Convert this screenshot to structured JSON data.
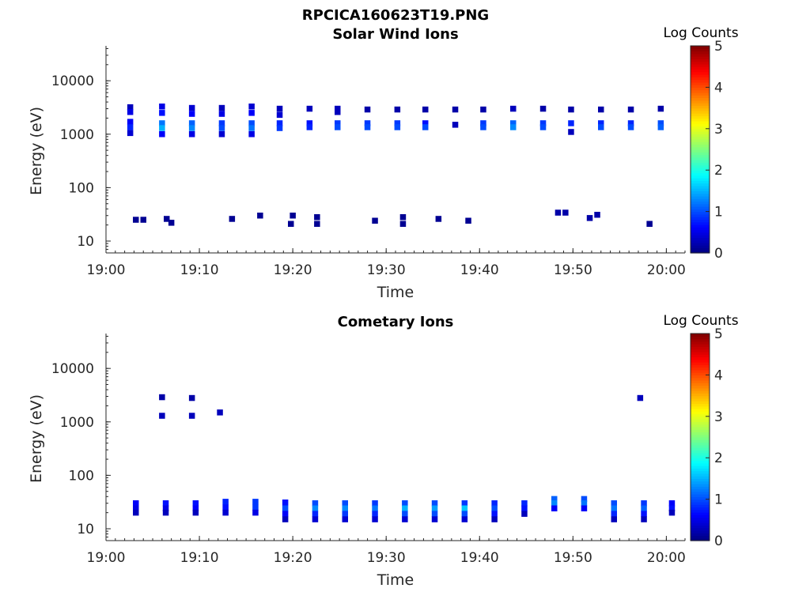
{
  "figure_title": "RPCICA160623T19.PNG",
  "colormap": {
    "name": "jet",
    "stops": [
      "#00007f",
      "#0000ff",
      "#007fff",
      "#00ffff",
      "#7fff7f",
      "#ffff00",
      "#ff7f00",
      "#ff0000",
      "#7f0000"
    ]
  },
  "chart_data": [
    {
      "type": "heatmap",
      "title": "Solar Wind Ions",
      "xlabel": "Time",
      "ylabel": "Energy (eV)",
      "xlim": [
        "19:00",
        "20:02"
      ],
      "ylim": [
        6,
        45000
      ],
      "yscale": "log",
      "xticks": [
        "19:00",
        "19:10",
        "19:20",
        "19:30",
        "19:40",
        "19:50",
        "20:00"
      ],
      "yticks": [
        "10",
        "100",
        "1000",
        "10000"
      ],
      "colorbar": {
        "label": "Log Counts",
        "ticks": [
          "0",
          "1",
          "2",
          "3",
          "4",
          "5"
        ],
        "range": [
          0,
          5
        ]
      },
      "cells": [
        [
          "19:02.6",
          3200,
          0.3
        ],
        [
          "19:02.6",
          2600,
          0.5
        ],
        [
          "19:02.6",
          1700,
          0.6
        ],
        [
          "19:02.6",
          1350,
          0.8
        ],
        [
          "19:02.6",
          1050,
          0.4
        ],
        [
          "19:06.0",
          3300,
          0.5
        ],
        [
          "19:06.0",
          2500,
          0.7
        ],
        [
          "19:06.0",
          1600,
          1.2
        ],
        [
          "19:06.0",
          1300,
          1.5
        ],
        [
          "19:06.0",
          1000,
          0.6
        ],
        [
          "19:09.2",
          3100,
          0.4
        ],
        [
          "19:09.2",
          2400,
          0.6
        ],
        [
          "19:09.2",
          1600,
          1.1
        ],
        [
          "19:09.2",
          1300,
          1.3
        ],
        [
          "19:09.2",
          1000,
          0.5
        ],
        [
          "19:12.4",
          3100,
          0.3
        ],
        [
          "19:12.4",
          2400,
          0.5
        ],
        [
          "19:12.4",
          1600,
          0.9
        ],
        [
          "19:12.4",
          1300,
          1.0
        ],
        [
          "19:12.4",
          1000,
          0.4
        ],
        [
          "19:15.6",
          3300,
          0.4
        ],
        [
          "19:15.6",
          2500,
          0.6
        ],
        [
          "19:15.6",
          1600,
          1.0
        ],
        [
          "19:15.6",
          1300,
          1.2
        ],
        [
          "19:15.6",
          1000,
          0.5
        ],
        [
          "19:18.6",
          3000,
          0.3
        ],
        [
          "19:18.6",
          2300,
          0.4
        ],
        [
          "19:18.6",
          1600,
          0.8
        ],
        [
          "19:18.6",
          1300,
          0.9
        ],
        [
          "19:21.8",
          3000,
          0.3
        ],
        [
          "19:21.8",
          1600,
          0.7
        ],
        [
          "19:21.8",
          1350,
          0.8
        ],
        [
          "19:24.8",
          3000,
          0.3
        ],
        [
          "19:24.8",
          2600,
          0.3
        ],
        [
          "19:24.8",
          1600,
          0.9
        ],
        [
          "19:24.8",
          1350,
          1.0
        ],
        [
          "19:28.0",
          2900,
          0.2
        ],
        [
          "19:28.0",
          1600,
          0.9
        ],
        [
          "19:28.0",
          1350,
          1.0
        ],
        [
          "19:31.2",
          2900,
          0.2
        ],
        [
          "19:31.2",
          1600,
          0.9
        ],
        [
          "19:31.2",
          1350,
          1.0
        ],
        [
          "19:34.2",
          2900,
          0.2
        ],
        [
          "19:34.2",
          1600,
          0.7
        ],
        [
          "19:34.2",
          1350,
          1.0
        ],
        [
          "19:37.4",
          2900,
          0.2
        ],
        [
          "19:37.4",
          1500,
          0.3
        ],
        [
          "19:40.4",
          2900,
          0.2
        ],
        [
          "19:40.4",
          1600,
          0.9
        ],
        [
          "19:40.4",
          1350,
          1.0
        ],
        [
          "19:43.6",
          3000,
          0.3
        ],
        [
          "19:43.6",
          1600,
          1.1
        ],
        [
          "19:43.6",
          1350,
          1.3
        ],
        [
          "19:46.8",
          3000,
          0.2
        ],
        [
          "19:46.8",
          1600,
          0.9
        ],
        [
          "19:46.8",
          1350,
          1.0
        ],
        [
          "19:49.8",
          2900,
          0.2
        ],
        [
          "19:49.8",
          1600,
          0.8
        ],
        [
          "19:49.8",
          1100,
          0.3
        ],
        [
          "19:53.0",
          2900,
          0.2
        ],
        [
          "19:53.0",
          1600,
          0.8
        ],
        [
          "19:53.0",
          1350,
          1.0
        ],
        [
          "19:56.2",
          2900,
          0.2
        ],
        [
          "19:56.2",
          1600,
          0.8
        ],
        [
          "19:56.2",
          1350,
          1.0
        ],
        [
          "19:59.4",
          3000,
          0.2
        ],
        [
          "19:59.4",
          1600,
          1.0
        ],
        [
          "19:59.4",
          1350,
          1.1
        ],
        [
          "19:03.2",
          25,
          0.1
        ],
        [
          "19:04.0",
          25,
          0.1
        ],
        [
          "19:06.5",
          26,
          0.1
        ],
        [
          "19:07.0",
          22,
          0.1
        ],
        [
          "19:13.5",
          26,
          0.1
        ],
        [
          "19:16.5",
          30,
          0.1
        ],
        [
          "19:20.0",
          30,
          0.1
        ],
        [
          "19:19.8",
          21,
          0.1
        ],
        [
          "19:22.6",
          28,
          0.1
        ],
        [
          "19:22.6",
          21,
          0.1
        ],
        [
          "19:28.8",
          24,
          0.1
        ],
        [
          "19:31.8",
          28,
          0.1
        ],
        [
          "19:31.8",
          21,
          0.1
        ],
        [
          "19:35.6",
          26,
          0.1
        ],
        [
          "19:38.8",
          24,
          0.1
        ],
        [
          "19:48.4",
          34,
          0.2
        ],
        [
          "19:49.2",
          34,
          0.2
        ],
        [
          "19:51.8",
          27,
          0.2
        ],
        [
          "19:52.6",
          31,
          0.2
        ],
        [
          "19:58.2",
          21,
          0.1
        ]
      ]
    },
    {
      "type": "heatmap",
      "title": "Cometary Ions",
      "xlabel": "Time",
      "ylabel": "Energy (eV)",
      "xlim": [
        "19:00",
        "20:02"
      ],
      "ylim": [
        6,
        45000
      ],
      "yscale": "log",
      "xticks": [
        "19:00",
        "19:10",
        "19:20",
        "19:30",
        "19:40",
        "19:50",
        "20:00"
      ],
      "yticks": [
        "10",
        "100",
        "1000",
        "10000"
      ],
      "colorbar": {
        "label": "Log Counts",
        "ticks": [
          "0",
          "1",
          "2",
          "3",
          "4",
          "5"
        ],
        "range": [
          0,
          5
        ]
      },
      "cells": [
        [
          "19:06.0",
          2900,
          0.2
        ],
        [
          "19:06.0",
          1300,
          0.3
        ],
        [
          "19:09.2",
          2800,
          0.2
        ],
        [
          "19:09.2",
          1300,
          0.3
        ],
        [
          "19:12.2",
          1500,
          0.3
        ],
        [
          "19:57.2",
          2800,
          0.3
        ],
        [
          "19:03.2",
          30,
          0.6
        ],
        [
          "19:03.2",
          24,
          0.5
        ],
        [
          "19:03.2",
          20,
          0.3
        ],
        [
          "19:06.4",
          30,
          0.7
        ],
        [
          "19:06.4",
          24,
          0.5
        ],
        [
          "19:06.4",
          20,
          0.3
        ],
        [
          "19:09.6",
          30,
          0.7
        ],
        [
          "19:09.6",
          24,
          0.6
        ],
        [
          "19:09.6",
          20,
          0.3
        ],
        [
          "19:12.8",
          32,
          0.8
        ],
        [
          "19:12.8",
          25,
          0.7
        ],
        [
          "19:12.8",
          20,
          0.4
        ],
        [
          "19:16.0",
          32,
          0.9
        ],
        [
          "19:16.0",
          25,
          0.9
        ],
        [
          "19:16.0",
          20,
          0.5
        ],
        [
          "19:19.2",
          31,
          0.7
        ],
        [
          "19:19.2",
          24,
          1.0
        ],
        [
          "19:19.2",
          19,
          0.6
        ],
        [
          "19:19.2",
          15,
          0.3
        ],
        [
          "19:22.4",
          30,
          1.0
        ],
        [
          "19:22.4",
          24,
          1.3
        ],
        [
          "19:22.4",
          19,
          0.8
        ],
        [
          "19:22.4",
          15,
          0.4
        ],
        [
          "19:25.6",
          30,
          1.0
        ],
        [
          "19:25.6",
          24,
          1.3
        ],
        [
          "19:25.6",
          19,
          0.9
        ],
        [
          "19:25.6",
          15,
          0.4
        ],
        [
          "19:28.8",
          30,
          0.9
        ],
        [
          "19:28.8",
          24,
          1.2
        ],
        [
          "19:28.8",
          19,
          0.8
        ],
        [
          "19:28.8",
          15,
          0.4
        ],
        [
          "19:32.0",
          30,
          1.0
        ],
        [
          "19:32.0",
          24,
          1.5
        ],
        [
          "19:32.0",
          19,
          1.0
        ],
        [
          "19:32.0",
          15,
          0.4
        ],
        [
          "19:35.2",
          30,
          1.0
        ],
        [
          "19:35.2",
          24,
          1.4
        ],
        [
          "19:35.2",
          19,
          1.0
        ],
        [
          "19:35.2",
          15,
          0.4
        ],
        [
          "19:38.4",
          30,
          0.9
        ],
        [
          "19:38.4",
          24,
          1.6
        ],
        [
          "19:38.4",
          19,
          1.0
        ],
        [
          "19:38.4",
          15,
          0.4
        ],
        [
          "19:41.6",
          30,
          0.8
        ],
        [
          "19:41.6",
          24,
          1.0
        ],
        [
          "19:41.6",
          19,
          0.7
        ],
        [
          "19:41.6",
          15,
          0.3
        ],
        [
          "19:44.8",
          30,
          0.8
        ],
        [
          "19:44.8",
          24,
          0.7
        ],
        [
          "19:44.8",
          19,
          0.3
        ],
        [
          "19:48.0",
          36,
          1.1
        ],
        [
          "19:48.0",
          30,
          1.3
        ],
        [
          "19:48.0",
          24,
          0.6
        ],
        [
          "19:51.2",
          36,
          1.0
        ],
        [
          "19:51.2",
          30,
          1.2
        ],
        [
          "19:51.2",
          24,
          0.6
        ],
        [
          "19:54.4",
          30,
          1.0
        ],
        [
          "19:54.4",
          24,
          1.2
        ],
        [
          "19:54.4",
          19,
          0.8
        ],
        [
          "19:54.4",
          15,
          0.3
        ],
        [
          "19:57.6",
          30,
          0.9
        ],
        [
          "19:57.6",
          24,
          1.1
        ],
        [
          "19:57.6",
          19,
          0.7
        ],
        [
          "19:57.6",
          15,
          0.3
        ],
        [
          "20:00.6",
          30,
          0.6
        ],
        [
          "20:00.6",
          24,
          0.7
        ],
        [
          "20:00.6",
          20,
          0.3
        ]
      ]
    }
  ]
}
